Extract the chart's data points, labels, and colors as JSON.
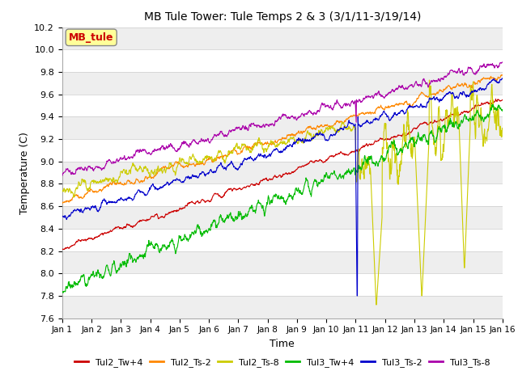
{
  "title": "MB Tule Tower: Tule Temps 2 & 3 (3/1/11-3/19/14)",
  "xlabel": "Time",
  "ylabel": "Temperature (C)",
  "ylim": [
    7.6,
    10.2
  ],
  "xlim": [
    0,
    15
  ],
  "xticks": [
    0,
    1,
    2,
    3,
    4,
    5,
    6,
    7,
    8,
    9,
    10,
    11,
    12,
    13,
    14,
    15
  ],
  "xticklabels": [
    "Jan 1",
    "Jan 2",
    "Jan 3",
    "Jan 4",
    "Jan 5",
    "Jan 6",
    "Jan 7",
    "Jan 8",
    "Jan 9",
    "Jan 10",
    "Jan 11",
    "Jan 12",
    "Jan 13",
    "Jan 14",
    "Jan 15",
    "Jan 16"
  ],
  "yticks": [
    7.6,
    7.8,
    8.0,
    8.2,
    8.4,
    8.6,
    8.8,
    9.0,
    9.2,
    9.4,
    9.6,
    9.8,
    10.0,
    10.2
  ],
  "legend_label": "MB_tule",
  "legend_box_color": "#FFFF99",
  "legend_text_color": "#CC0000",
  "series": [
    {
      "name": "Tul2_Tw+4",
      "color": "#CC0000"
    },
    {
      "name": "Tul2_Ts-2",
      "color": "#FF8800"
    },
    {
      "name": "Tul2_Ts-8",
      "color": "#CCCC00"
    },
    {
      "name": "Tul3_Tw+4",
      "color": "#00BB00"
    },
    {
      "name": "Tul3_Ts-2",
      "color": "#0000CC"
    },
    {
      "name": "Tul3_Ts-8",
      "color": "#AA00AA"
    }
  ],
  "background_color": "#ffffff",
  "grid_color": "#cccccc",
  "band_color": "#eeeeee"
}
